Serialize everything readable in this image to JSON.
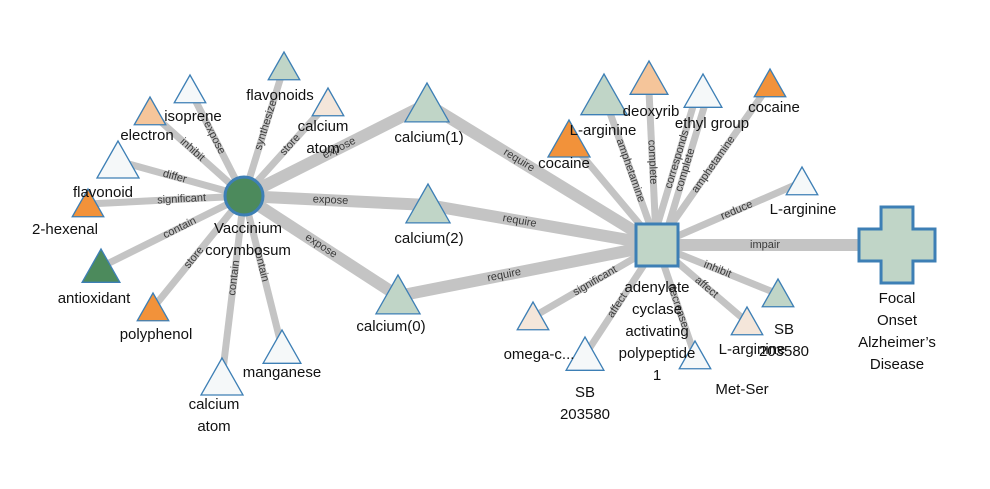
{
  "graph": {
    "colors": {
      "edge": "#c4c4c4",
      "node_stroke": "#3d7fb5",
      "dark_green": "#4c8a5c",
      "mid_green": "#c0d5c7",
      "pale_green": "#d6e3da",
      "light": "#f5f8f9",
      "pale_peach": "#f4e6da",
      "peach": "#f5c59a",
      "orange": "#f2923a",
      "white": "#ffffff"
    },
    "nodes": [
      {
        "id": "vaccinium",
        "name": "node-vaccinium-corymbosum",
        "shape": "circle",
        "fill": "dark_green",
        "label_lines": [
          "Vaccinium",
          "corymbosum"
        ]
      },
      {
        "id": "adenylate",
        "name": "node-adenylate-cyclase-activating-polypeptide-1",
        "shape": "square",
        "fill": "mid_green",
        "label_lines": [
          "adenylate",
          "cyclase",
          "activating",
          "polypeptide",
          "1"
        ]
      },
      {
        "id": "focal",
        "name": "node-focal-onset-alzheimers-disease",
        "shape": "cross",
        "fill": "mid_green",
        "label_lines": [
          "Focal",
          "Onset",
          "Alzheimer’s",
          "Disease"
        ]
      },
      {
        "id": "calcium1",
        "name": "node-calcium-1",
        "shape": "triangle",
        "fill": "mid_green",
        "big": true,
        "label_lines": [
          "calcium(1)"
        ]
      },
      {
        "id": "calcium2",
        "name": "node-calcium-2",
        "shape": "triangle",
        "fill": "mid_green",
        "big": true,
        "label_lines": [
          "calcium(2)"
        ]
      },
      {
        "id": "calcium0",
        "name": "node-calcium-0",
        "shape": "triangle",
        "fill": "mid_green",
        "big": true,
        "label_lines": [
          "calcium(0)"
        ]
      },
      {
        "id": "flavonoids",
        "name": "node-flavonoids",
        "shape": "triangle",
        "fill": "mid_green",
        "label_lines": [
          "flavonoids"
        ]
      },
      {
        "id": "calcium_atom_top",
        "name": "node-calcium-atom-top",
        "shape": "triangle",
        "fill": "pale_peach",
        "label_lines": [
          "calcium",
          "atom"
        ]
      },
      {
        "id": "isoprene",
        "name": "node-isoprene",
        "shape": "triangle",
        "fill": "light",
        "label_lines": [
          "isoprene"
        ]
      },
      {
        "id": "electron",
        "name": "node-electron",
        "shape": "triangle",
        "fill": "peach",
        "label_lines": [
          "electron"
        ]
      },
      {
        "id": "flavonoid",
        "name": "node-flavonoid",
        "shape": "triangle",
        "fill": "light",
        "label_lines": [
          "flavonoid"
        ]
      },
      {
        "id": "hexenal",
        "name": "node-2-hexenal",
        "shape": "triangle",
        "fill": "orange",
        "label_lines": [
          "2-hexenal"
        ]
      },
      {
        "id": "antioxidant",
        "name": "node-antioxidant",
        "shape": "triangle",
        "fill": "dark_green",
        "label_lines": [
          "antioxidant"
        ]
      },
      {
        "id": "polyphenol",
        "name": "node-polyphenol",
        "shape": "triangle",
        "fill": "orange",
        "label_lines": [
          "polyphenol"
        ]
      },
      {
        "id": "calcium_atom_bottom",
        "name": "node-calcium-atom-bottom",
        "shape": "triangle",
        "fill": "light",
        "label_lines": [
          "calcium",
          "atom"
        ]
      },
      {
        "id": "manganese",
        "name": "node-manganese",
        "shape": "triangle",
        "fill": "light",
        "label_lines": [
          "manganese"
        ]
      },
      {
        "id": "larginine_top",
        "name": "node-l-arginine-top",
        "shape": "triangle",
        "fill": "mid_green",
        "label_lines": [
          "L-arginine"
        ]
      },
      {
        "id": "deoxyrib",
        "name": "node-deoxyrib",
        "shape": "triangle",
        "fill": "peach",
        "label_lines": [
          "deoxyrib"
        ]
      },
      {
        "id": "ethyl",
        "name": "node-ethyl-group",
        "shape": "triangle",
        "fill": "light",
        "label_lines": [
          "ethyl group"
        ]
      },
      {
        "id": "cocaine_top",
        "name": "node-cocaine-top",
        "shape": "triangle",
        "fill": "orange",
        "label_lines": [
          "cocaine"
        ]
      },
      {
        "id": "cocaine_mid",
        "name": "node-cocaine-mid",
        "shape": "triangle",
        "fill": "orange",
        "label_lines": [
          "cocaine"
        ]
      },
      {
        "id": "larginine_right",
        "name": "node-l-arginine-right",
        "shape": "triangle",
        "fill": "light",
        "label_lines": [
          "L-arginine"
        ]
      },
      {
        "id": "sb_right",
        "name": "node-sb-203580-right",
        "shape": "triangle",
        "fill": "mid_green",
        "label_lines": [
          "SB",
          "203580"
        ]
      },
      {
        "id": "larginine_bottom",
        "name": "node-l-arginine-bottom",
        "shape": "triangle",
        "fill": "pale_peach",
        "label_lines": [
          "L-arginine"
        ]
      },
      {
        "id": "metser",
        "name": "node-met-ser",
        "shape": "triangle",
        "fill": "light",
        "label_lines": [
          "Met-Ser"
        ]
      },
      {
        "id": "sb_bottom",
        "name": "node-sb-203580-bottom",
        "shape": "triangle",
        "fill": "light",
        "label_lines": [
          "SB",
          "203580"
        ]
      },
      {
        "id": "omega",
        "name": "node-omega-c",
        "shape": "triangle",
        "fill": "pale_peach",
        "label_lines": [
          "omega-c..."
        ]
      }
    ],
    "edges": [
      {
        "id": "e1",
        "from": "vaccinium",
        "to": "calcium1",
        "label": "expose",
        "weight": "heavy"
      },
      {
        "id": "e2",
        "from": "vaccinium",
        "to": "calcium2",
        "label": "expose",
        "weight": "heavy"
      },
      {
        "id": "e3",
        "from": "vaccinium",
        "to": "calcium0",
        "label": "expose",
        "weight": "heavy"
      },
      {
        "id": "e4",
        "from": "calcium1",
        "to": "adenylate",
        "label": "require",
        "weight": "heavy"
      },
      {
        "id": "e5",
        "from": "calcium2",
        "to": "adenylate",
        "label": "require",
        "weight": "heavy"
      },
      {
        "id": "e6",
        "from": "calcium0",
        "to": "adenylate",
        "label": "require",
        "weight": "heavy"
      },
      {
        "id": "e7",
        "from": "adenylate",
        "to": "focal",
        "label": "impair",
        "weight": "heavy"
      },
      {
        "id": "e8",
        "from": "vaccinium",
        "to": "flavonoids",
        "label": "synthesize",
        "weight": "light"
      },
      {
        "id": "e9",
        "from": "vaccinium",
        "to": "calcium_atom_top",
        "label": "store",
        "weight": "light"
      },
      {
        "id": "e10",
        "from": "vaccinium",
        "to": "isoprene",
        "label": "expose",
        "weight": "light"
      },
      {
        "id": "e11",
        "from": "vaccinium",
        "to": "electron",
        "label": "inhibit",
        "weight": "light"
      },
      {
        "id": "e12",
        "from": "vaccinium",
        "to": "flavonoid",
        "label": "differ",
        "weight": "light"
      },
      {
        "id": "e13",
        "from": "vaccinium",
        "to": "hexenal",
        "label": "significant",
        "weight": "light"
      },
      {
        "id": "e14",
        "from": "vaccinium",
        "to": "antioxidant",
        "label": "contain",
        "weight": "light"
      },
      {
        "id": "e15",
        "from": "vaccinium",
        "to": "polyphenol",
        "label": "store",
        "weight": "light"
      },
      {
        "id": "e16",
        "from": "vaccinium",
        "to": "calcium_atom_bottom",
        "label": "contain",
        "weight": "light"
      },
      {
        "id": "e17",
        "from": "vaccinium",
        "to": "manganese",
        "label": "contain",
        "weight": "light"
      },
      {
        "id": "e18",
        "from": "adenylate",
        "to": "larginine_top",
        "label": "amphetamine",
        "weight": "light"
      },
      {
        "id": "e19",
        "from": "adenylate",
        "to": "deoxyrib",
        "label": "complete",
        "weight": "light"
      },
      {
        "id": "e20",
        "from": "adenylate",
        "to": "cocaine_mid",
        "label": "",
        "weight": "light"
      },
      {
        "id": "e21",
        "from": "adenylate",
        "to": "ethyl",
        "label": "corresponds",
        "weight": "light"
      },
      {
        "id": "e22",
        "from": "adenylate",
        "to": "ethyl",
        "label": "complete",
        "weight": "light"
      },
      {
        "id": "e23",
        "from": "adenylate",
        "to": "cocaine_top",
        "label": "amphetamine",
        "weight": "light"
      },
      {
        "id": "e24",
        "from": "adenylate",
        "to": "larginine_right",
        "label": "reduce",
        "weight": "light"
      },
      {
        "id": "e25",
        "from": "adenylate",
        "to": "sb_right",
        "label": "inhibit",
        "weight": "light"
      },
      {
        "id": "e26",
        "from": "adenylate",
        "to": "larginine_bottom",
        "label": "affect",
        "weight": "light"
      },
      {
        "id": "e27",
        "from": "adenylate",
        "to": "metser",
        "label": "decrease",
        "weight": "light"
      },
      {
        "id": "e28",
        "from": "adenylate",
        "to": "sb_bottom",
        "label": "affect",
        "weight": "light"
      },
      {
        "id": "e29",
        "from": "adenylate",
        "to": "omega",
        "label": "significant",
        "weight": "light"
      }
    ]
  }
}
